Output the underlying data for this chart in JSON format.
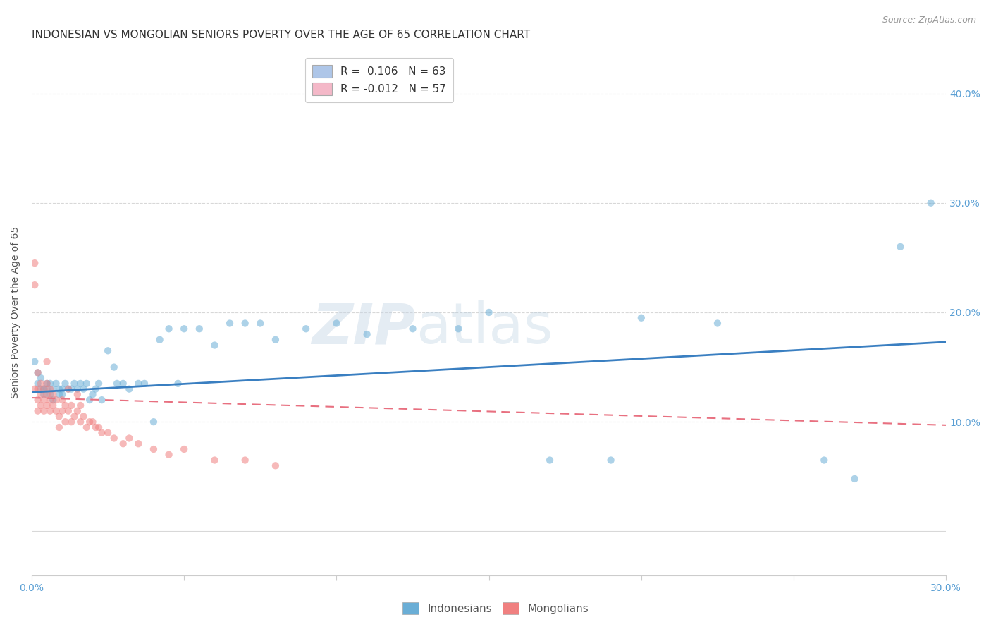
{
  "title": "INDONESIAN VS MONGOLIAN SENIORS POVERTY OVER THE AGE OF 65 CORRELATION CHART",
  "source": "Source: ZipAtlas.com",
  "ylabel": "Seniors Poverty Over the Age of 65",
  "xlim": [
    0.0,
    0.3
  ],
  "ylim": [
    -0.04,
    0.44
  ],
  "xticks": [
    0.0,
    0.05,
    0.1,
    0.15,
    0.2,
    0.25,
    0.3
  ],
  "xtick_labels": [
    "0.0%",
    "",
    "",
    "",
    "",
    "",
    "30.0%"
  ],
  "yticks": [
    0.0,
    0.1,
    0.2,
    0.3,
    0.4
  ],
  "ytick_labels": [
    "",
    "10.0%",
    "20.0%",
    "30.0%",
    "40.0%"
  ],
  "legend_entries": [
    {
      "label": "R =  0.106   N = 63",
      "color": "#aec6e8"
    },
    {
      "label": "R = -0.012   N = 57",
      "color": "#f4b8c8"
    }
  ],
  "indonesian_color": "#6aaed6",
  "mongolian_color": "#f08080",
  "indonesian_line_color": "#3a7fc1",
  "mongolian_line_color": "#e87080",
  "watermark_zip": "ZIP",
  "watermark_atlas": "atlas",
  "background_color": "#ffffff",
  "grid_color": "#d8d8d8",
  "title_fontsize": 11,
  "label_fontsize": 10,
  "tick_fontsize": 10,
  "scatter_size": 55,
  "scatter_alpha": 0.55,
  "indonesian_R": 0.106,
  "mongolian_R": -0.012,
  "indonesian_x": [
    0.001,
    0.002,
    0.002,
    0.003,
    0.003,
    0.004,
    0.004,
    0.005,
    0.005,
    0.006,
    0.006,
    0.007,
    0.007,
    0.008,
    0.009,
    0.009,
    0.01,
    0.01,
    0.011,
    0.012,
    0.013,
    0.014,
    0.015,
    0.016,
    0.017,
    0.018,
    0.019,
    0.02,
    0.021,
    0.022,
    0.023,
    0.025,
    0.027,
    0.028,
    0.03,
    0.032,
    0.035,
    0.037,
    0.04,
    0.042,
    0.045,
    0.048,
    0.05,
    0.055,
    0.06,
    0.065,
    0.07,
    0.075,
    0.08,
    0.09,
    0.1,
    0.11,
    0.125,
    0.14,
    0.15,
    0.17,
    0.19,
    0.2,
    0.225,
    0.26,
    0.27,
    0.285,
    0.295
  ],
  "indonesian_y": [
    0.155,
    0.145,
    0.135,
    0.13,
    0.14,
    0.13,
    0.125,
    0.135,
    0.13,
    0.135,
    0.125,
    0.12,
    0.13,
    0.135,
    0.125,
    0.13,
    0.125,
    0.13,
    0.135,
    0.13,
    0.13,
    0.135,
    0.13,
    0.135,
    0.13,
    0.135,
    0.12,
    0.125,
    0.13,
    0.135,
    0.12,
    0.165,
    0.15,
    0.135,
    0.135,
    0.13,
    0.135,
    0.135,
    0.1,
    0.175,
    0.185,
    0.135,
    0.185,
    0.185,
    0.17,
    0.19,
    0.19,
    0.19,
    0.175,
    0.185,
    0.19,
    0.18,
    0.185,
    0.185,
    0.2,
    0.065,
    0.065,
    0.195,
    0.19,
    0.065,
    0.048,
    0.26,
    0.3
  ],
  "mongolian_x": [
    0.001,
    0.001,
    0.001,
    0.002,
    0.002,
    0.002,
    0.002,
    0.003,
    0.003,
    0.003,
    0.004,
    0.004,
    0.004,
    0.005,
    0.005,
    0.005,
    0.005,
    0.006,
    0.006,
    0.006,
    0.007,
    0.007,
    0.008,
    0.008,
    0.009,
    0.009,
    0.01,
    0.01,
    0.011,
    0.011,
    0.012,
    0.012,
    0.013,
    0.013,
    0.014,
    0.015,
    0.015,
    0.016,
    0.016,
    0.017,
    0.018,
    0.019,
    0.02,
    0.021,
    0.022,
    0.023,
    0.025,
    0.027,
    0.03,
    0.032,
    0.035,
    0.04,
    0.045,
    0.05,
    0.06,
    0.07,
    0.08
  ],
  "mongolian_y": [
    0.245,
    0.225,
    0.13,
    0.145,
    0.13,
    0.12,
    0.11,
    0.135,
    0.125,
    0.115,
    0.13,
    0.12,
    0.11,
    0.155,
    0.135,
    0.125,
    0.115,
    0.13,
    0.12,
    0.11,
    0.125,
    0.115,
    0.12,
    0.11,
    0.105,
    0.095,
    0.12,
    0.11,
    0.115,
    0.1,
    0.13,
    0.11,
    0.115,
    0.1,
    0.105,
    0.125,
    0.11,
    0.115,
    0.1,
    0.105,
    0.095,
    0.1,
    0.1,
    0.095,
    0.095,
    0.09,
    0.09,
    0.085,
    0.08,
    0.085,
    0.08,
    0.075,
    0.07,
    0.075,
    0.065,
    0.065,
    0.06
  ],
  "ind_line_x": [
    0.0,
    0.3
  ],
  "ind_line_y": [
    0.127,
    0.173
  ],
  "mon_line_x": [
    0.0,
    0.3
  ],
  "mon_line_y": [
    0.122,
    0.097
  ]
}
